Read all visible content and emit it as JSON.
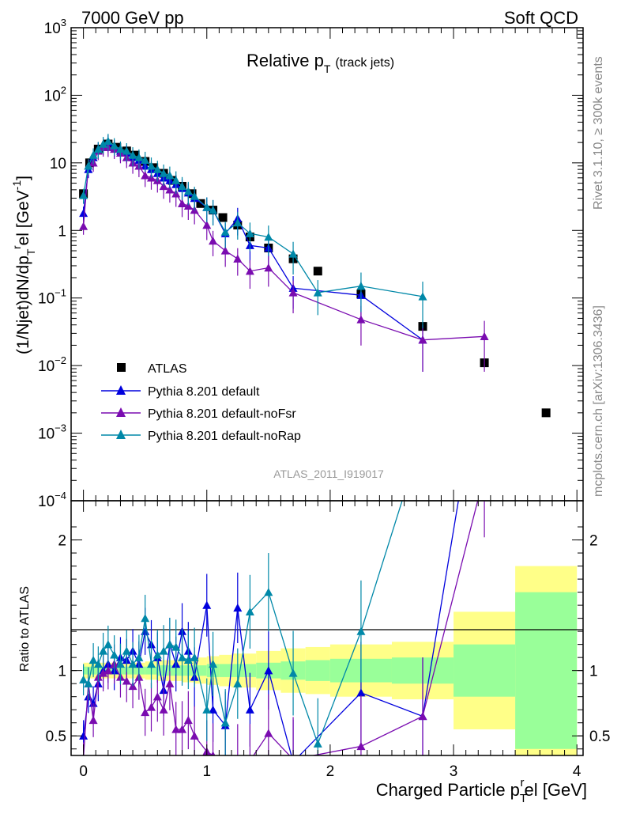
{
  "header": {
    "left": "7000 GeV pp",
    "right": "Soft QCD"
  },
  "side": {
    "rivet": "Rivet 3.1.10, ≥ 300k events",
    "mcplots": "mcplots.cern.ch [arXiv:1306.3436]"
  },
  "chart_data": [
    {
      "type": "scatter",
      "title": "Relative p_T (track jets)",
      "title_main": "Relative p",
      "title_sub": "T",
      "title_tail": "(track jets)",
      "ylabel": "(1/Njet)dN/dp_T^rel [GeV^-1]",
      "yscale": "log",
      "ylim": [
        0.0001,
        1000
      ],
      "xlim": [
        -0.1,
        4.05
      ],
      "y_tick_labels": [
        "10^-4",
        "10^-3",
        "10^-2",
        "10^-1",
        "1",
        "10",
        "10^2",
        "10^3"
      ],
      "watermark": "ATLAS_2011_I919017",
      "legend_position": "lower-left",
      "legend": [
        "ATLAS",
        "Pythia 8.201 default",
        "Pythia 8.201 default-noFsr",
        "Pythia 8.201 default-noRap"
      ],
      "colors": {
        "data": "#000000",
        "default": "#0000dd",
        "noFsr": "#7a0cb0",
        "noRap": "#0088a8"
      },
      "series": [
        {
          "name": "ATLAS",
          "x": [
            0.0,
            0.05,
            0.12,
            0.2,
            0.27,
            0.35,
            0.42,
            0.5,
            0.57,
            0.65,
            0.72,
            0.8,
            0.88,
            0.95,
            1.05,
            1.13,
            1.25,
            1.35,
            1.5,
            1.7,
            1.9,
            2.25,
            2.75,
            3.25,
            3.75
          ],
          "y": [
            3.5,
            10,
            16,
            19,
            17,
            15,
            13,
            10.5,
            8.5,
            7,
            5.5,
            4.5,
            3.5,
            2.5,
            2,
            1.55,
            1.2,
            0.8,
            0.55,
            0.38,
            0.25,
            0.115,
            0.038,
            0.011,
            0.002
          ]
        },
        {
          "name": "Pythia 8.201 default",
          "x": [
            0.0,
            0.04,
            0.08,
            0.12,
            0.16,
            0.2,
            0.25,
            0.3,
            0.35,
            0.4,
            0.45,
            0.5,
            0.55,
            0.6,
            0.65,
            0.7,
            0.75,
            0.8,
            0.85,
            0.9,
            1.0,
            1.05,
            1.15,
            1.25,
            1.35,
            1.5,
            1.7,
            2.25,
            2.75
          ],
          "y": [
            1.8,
            8,
            12,
            16,
            18,
            20,
            17,
            15,
            14,
            12,
            11,
            9,
            8,
            7,
            6,
            5.5,
            4.8,
            4.2,
            3.6,
            3.0,
            2.2,
            2.0,
            0.9,
            1.5,
            0.6,
            0.55,
            0.14,
            0.11,
            0.024
          ]
        },
        {
          "name": "Pythia 8.201 default-noFsr",
          "x": [
            0.0,
            0.04,
            0.08,
            0.12,
            0.16,
            0.2,
            0.25,
            0.3,
            0.35,
            0.4,
            0.45,
            0.5,
            0.55,
            0.6,
            0.65,
            0.7,
            0.75,
            0.8,
            0.85,
            0.9,
            1.0,
            1.05,
            1.15,
            1.25,
            1.35,
            1.5,
            1.7,
            2.25,
            2.75,
            3.25
          ],
          "y": [
            1.15,
            9,
            10,
            15,
            17,
            17,
            16,
            14,
            12,
            10,
            9,
            6.5,
            6,
            5.5,
            4.5,
            4,
            3.5,
            2.5,
            2.3,
            2,
            1.2,
            0.7,
            0.5,
            0.38,
            0.25,
            0.28,
            0.12,
            0.048,
            0.024,
            0.027
          ]
        },
        {
          "name": "Pythia 8.201 default-noRap",
          "x": [
            0.0,
            0.04,
            0.08,
            0.12,
            0.16,
            0.2,
            0.25,
            0.3,
            0.35,
            0.4,
            0.45,
            0.5,
            0.55,
            0.6,
            0.65,
            0.7,
            0.75,
            0.8,
            0.85,
            0.9,
            1.0,
            1.05,
            1.15,
            1.25,
            1.35,
            1.5,
            1.7,
            1.9,
            2.25,
            2.75
          ],
          "y": [
            3.3,
            9,
            13,
            16,
            19,
            21,
            18,
            16,
            15,
            13,
            12,
            11,
            9,
            8,
            7,
            6.5,
            5.5,
            4.5,
            3.8,
            3.2,
            2.2,
            2.0,
            0.95,
            1.3,
            0.9,
            0.8,
            0.45,
            0.12,
            0.15,
            0.105
          ]
        }
      ]
    },
    {
      "type": "line",
      "ylabel": "Ratio to ATLAS",
      "xlabel": "Charged Particle p_T^rel [GeV]",
      "xlabel_main": "Charged Particle p",
      "xlabel_sub": "T",
      "xlabel_sup": "r",
      "xlabel_tail": "el [GeV]",
      "xlim": [
        -0.1,
        4.05
      ],
      "ylim": [
        0.35,
        2.3
      ],
      "x_tick_labels": [
        "0",
        "1",
        "2",
        "3",
        "4"
      ],
      "y_tick_labels": [
        "0.5",
        "1",
        "2"
      ],
      "band_edges": [
        0.0,
        0.1,
        0.2,
        0.3,
        0.4,
        0.5,
        0.6,
        0.7,
        0.8,
        0.9,
        1.0,
        1.1,
        1.2,
        1.3,
        1.4,
        1.6,
        1.8,
        2.0,
        2.5,
        3.0,
        3.5,
        4.0
      ],
      "band_stat": [
        0.03,
        0.03,
        0.03,
        0.03,
        0.03,
        0.03,
        0.04,
        0.04,
        0.04,
        0.04,
        0.05,
        0.05,
        0.05,
        0.05,
        0.06,
        0.07,
        0.08,
        0.09,
        0.1,
        0.2,
        0.6
      ],
      "band_total": [
        0.06,
        0.06,
        0.06,
        0.06,
        0.06,
        0.07,
        0.08,
        0.08,
        0.09,
        0.1,
        0.11,
        0.12,
        0.13,
        0.13,
        0.15,
        0.17,
        0.18,
        0.2,
        0.22,
        0.45,
        0.8
      ],
      "series": [
        {
          "name": "Pythia 8.201 default",
          "x": [
            0.0,
            0.04,
            0.08,
            0.12,
            0.16,
            0.2,
            0.25,
            0.3,
            0.35,
            0.4,
            0.45,
            0.5,
            0.55,
            0.6,
            0.65,
            0.7,
            0.75,
            0.8,
            0.85,
            0.9,
            1.0,
            1.05,
            1.15,
            1.25,
            1.35,
            1.5,
            1.7,
            2.25,
            2.75,
            3.25
          ],
          "y": [
            0.5,
            0.8,
            0.75,
            0.9,
            1.0,
            1.05,
            1.0,
            1.1,
            1.08,
            1.15,
            1.05,
            1.3,
            1.2,
            1.1,
            0.85,
            1.2,
            1.05,
            1.3,
            1.15,
            0.95,
            1.5,
            0.7,
            0.58,
            1.48,
            0.7,
            1.0,
            0.3,
            0.83,
            0.65,
            3.5
          ]
        },
        {
          "name": "Pythia 8.201 default-noFsr",
          "x": [
            0.0,
            0.04,
            0.08,
            0.12,
            0.16,
            0.2,
            0.25,
            0.3,
            0.35,
            0.4,
            0.45,
            0.5,
            0.55,
            0.6,
            0.65,
            0.7,
            0.75,
            0.8,
            0.85,
            0.9,
            1.0,
            1.05,
            1.15,
            1.25,
            1.35,
            1.5,
            1.7,
            2.25,
            2.75,
            3.25
          ],
          "y": [
            0.33,
            0.9,
            0.62,
            0.95,
            0.98,
            1.0,
            1.05,
            0.95,
            0.92,
            0.88,
            0.95,
            0.68,
            0.72,
            0.8,
            0.7,
            0.9,
            0.55,
            0.55,
            0.62,
            0.5,
            0.38,
            0.35,
            0.3,
            0.32,
            0.31,
            0.52,
            0.32,
            0.42,
            0.65,
            2.5
          ]
        },
        {
          "name": "Pythia 8.201 default-noRap",
          "x": [
            0.0,
            0.04,
            0.08,
            0.12,
            0.16,
            0.2,
            0.25,
            0.3,
            0.35,
            0.4,
            0.45,
            0.5,
            0.55,
            0.6,
            0.65,
            0.7,
            0.75,
            0.8,
            0.85,
            0.9,
            1.0,
            1.05,
            1.15,
            1.25,
            1.35,
            1.5,
            1.7,
            1.9,
            2.25,
            2.75
          ],
          "y": [
            0.93,
            0.9,
            1.08,
            1.05,
            1.15,
            1.2,
            1.12,
            1.05,
            1.15,
            1.05,
            1.1,
            1.4,
            1.05,
            1.12,
            1.15,
            1.2,
            1.18,
            1.1,
            1.08,
            1.1,
            0.7,
            1.05,
            0.6,
            0.9,
            1.45,
            1.6,
            0.98,
            0.44,
            1.3,
            2.8
          ]
        }
      ]
    }
  ]
}
